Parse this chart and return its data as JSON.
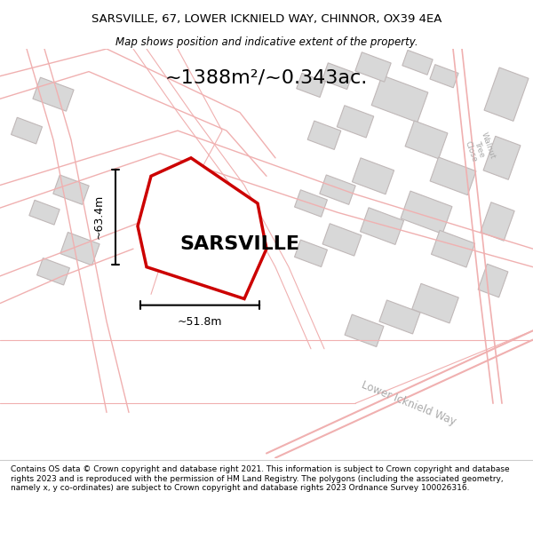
{
  "title_line1": "SARSVILLE, 67, LOWER ICKNIELD WAY, CHINNOR, OX39 4EA",
  "title_line2": "Map shows position and indicative extent of the property.",
  "area_label": "~1388m²/~0.343ac.",
  "property_label": "SARSVILLE",
  "dim_width": "~51.8m",
  "dim_height": "~63.4m",
  "footer_text": "Contains OS data © Crown copyright and database right 2021. This information is subject to Crown copyright and database rights 2023 and is reproduced with the permission of HM Land Registry. The polygons (including the associated geometry, namely x, y co-ordinates) are subject to Crown copyright and database rights 2023 Ordnance Survey 100026316.",
  "bg_color": "#f5f5f5",
  "map_bg": "#f0eeee",
  "plot_outline_color": "#cc0000",
  "plot_fill_color": "#ffffff",
  "road_color": "#f0b0b0",
  "building_color": "#d8d8d8",
  "building_outline": "#c0b8b8",
  "dim_line_color": "#000000",
  "text_color": "#000000",
  "footer_bg": "#ffffff",
  "header_bg": "#ffffff",
  "road_label_color": "#aaaaaa",
  "walnut_label": "Walnut\nTree\nClose",
  "road_label": "Lower Icknield Way"
}
